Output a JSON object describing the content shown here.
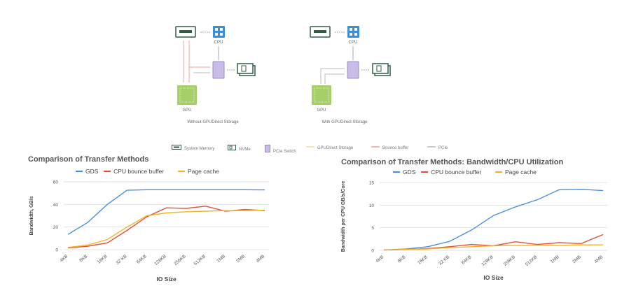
{
  "diagram": {
    "left_caption": "Without GPUDirect Storage",
    "right_caption": "With GPUDirect Storage",
    "cpu_label": "CPU",
    "gpu_label": "GPU",
    "legend": [
      {
        "label": "System Memory",
        "icon": "memory-icon"
      },
      {
        "label": "NVMe",
        "icon": "nvme-icon"
      },
      {
        "label": "PCIe Switch",
        "icon": "pcie-switch-icon"
      },
      {
        "label": "GPUDirect Storage",
        "icon": "line-icon",
        "color": "#f3e08c"
      },
      {
        "label": "Bounce buffer",
        "icon": "line-icon",
        "color": "#f2a0a0"
      },
      {
        "label": "PCIe",
        "icon": "line-icon",
        "color": "#bbbbbb"
      }
    ]
  },
  "chart_data": [
    {
      "type": "line",
      "title": "Comparison of Transfer Methods",
      "xlabel": "IO Size",
      "ylabel": "Bandwidth, GB/s",
      "categories": [
        "4KB",
        "8KB",
        "16KB",
        "32 KB",
        "64KB",
        "128KB",
        "256KB",
        "512KB",
        "1MB",
        "2MB",
        "4MB"
      ],
      "ylim": [
        0,
        60
      ],
      "yticks": [
        0,
        20,
        40,
        60
      ],
      "grid": true,
      "legend": "top-left",
      "series": [
        {
          "name": "GDS",
          "color": "#4a90d9",
          "values": [
            13.5,
            24,
            40,
            52.5,
            53,
            53,
            53,
            53,
            53,
            53,
            52.8
          ]
        },
        {
          "name": "CPU bounce buffer",
          "color": "#e0533a",
          "values": [
            1.5,
            3,
            6,
            17,
            29,
            37,
            36.5,
            38.5,
            34,
            35.5,
            34.5
          ]
        },
        {
          "name": "Page cache",
          "color": "#f0b429",
          "values": [
            2,
            4,
            9,
            20,
            30,
            32.5,
            33.5,
            34,
            34.5,
            34.5,
            35
          ]
        }
      ]
    },
    {
      "type": "line",
      "title": "Comparison of Transfer Methods: Bandwidth/CPU Utilization",
      "xlabel": "IO Size",
      "ylabel": "Bandwidth per CPU GB/s/Core",
      "categories": [
        "4KB",
        "8KB",
        "16KB",
        "32 KB",
        "64KB",
        "128KB",
        "256KB",
        "512KB",
        "1MB",
        "2MB",
        "4MB"
      ],
      "ylim": [
        0,
        15
      ],
      "yticks": [
        0,
        5,
        10,
        15
      ],
      "grid": true,
      "legend": "top-left",
      "series": [
        {
          "name": "GDS",
          "color": "#4a90d9",
          "values": [
            0.1,
            0.3,
            0.8,
            2,
            4.5,
            7.7,
            9.6,
            11.2,
            13.4,
            13.5,
            13.2
          ]
        },
        {
          "name": "CPU bounce buffer",
          "color": "#e0533a",
          "values": [
            0.1,
            0.2,
            0.4,
            0.8,
            1.3,
            1,
            1.9,
            1.3,
            1.7,
            1.5,
            3.5
          ]
        },
        {
          "name": "Page cache",
          "color": "#f0b429",
          "values": [
            0.1,
            0.2,
            0.3,
            0.6,
            0.8,
            1.0,
            1.1,
            1.1,
            1.1,
            1.2,
            1.2
          ]
        }
      ]
    }
  ]
}
